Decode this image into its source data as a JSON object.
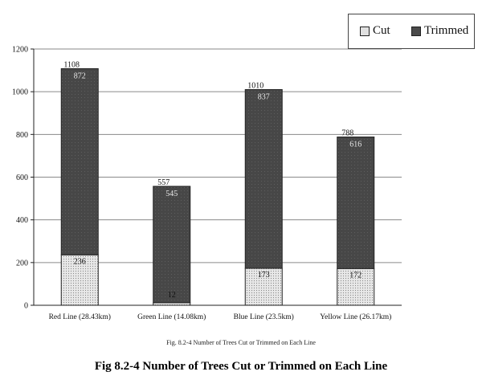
{
  "chart_data": {
    "type": "bar",
    "stacked": true,
    "categories": [
      "Red Line (28.43km)",
      "Green Line (14.08km)",
      "Blue Line (23.5km)",
      "Yellow Line (26.17km)"
    ],
    "series": [
      {
        "name": "Cut",
        "values": [
          236,
          12,
          173,
          172
        ],
        "labels": [
          "236",
          "12",
          "173",
          "172"
        ],
        "color": "#e0e0e0"
      },
      {
        "name": "Trimmed",
        "values": [
          872,
          545,
          837,
          616
        ],
        "labels": [
          "872",
          "545",
          "837",
          "616"
        ],
        "color": "#4a4a4a"
      }
    ],
    "totals": [
      1108,
      557,
      1010,
      788
    ],
    "total_labels": [
      "1108",
      "557",
      "1010",
      "788"
    ],
    "ylim": [
      0,
      1200
    ],
    "yticks": [
      0,
      200,
      400,
      600,
      800,
      1000,
      1200
    ],
    "grid": true,
    "legend_position": "top-right",
    "title": "Fig 8.2-4 Number of Trees Cut or Trimmed on Each Line",
    "subtitle": "Fig. 8.2-4  Number of Trees Cut or Trimmed on Each Line",
    "xlabel": "",
    "ylabel": ""
  }
}
